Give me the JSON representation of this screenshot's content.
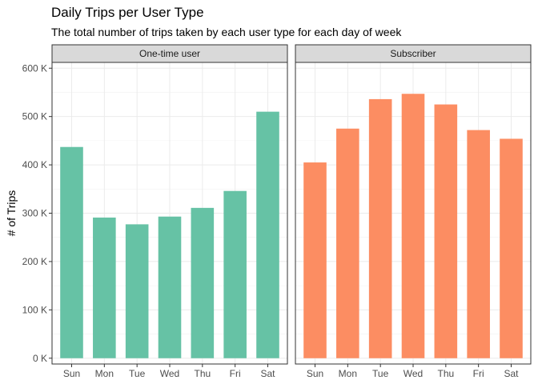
{
  "chart_data": {
    "type": "bar",
    "title": "Daily Trips per User Type",
    "subtitle": "The total number of trips taken by each user type for each day of week",
    "ylabel": "# of Trips",
    "xlabel": "",
    "ylim": [
      0,
      600000
    ],
    "yticks": [
      0,
      100000,
      200000,
      300000,
      400000,
      500000,
      600000
    ],
    "ytick_labels": [
      "0 K",
      "100 K",
      "200 K",
      "300 K",
      "400 K",
      "500 K",
      "600 K"
    ],
    "categories": [
      "Sun",
      "Mon",
      "Tue",
      "Wed",
      "Thu",
      "Fri",
      "Sat"
    ],
    "grid": true,
    "legend": "none",
    "facets": [
      {
        "name": "One-time user",
        "color": "#66c2a5",
        "values": [
          437000,
          291000,
          277000,
          293000,
          311000,
          346000,
          510000
        ]
      },
      {
        "name": "Subscriber",
        "color": "#fc8d62",
        "values": [
          405000,
          475000,
          536000,
          547000,
          525000,
          472000,
          454000
        ]
      }
    ]
  }
}
